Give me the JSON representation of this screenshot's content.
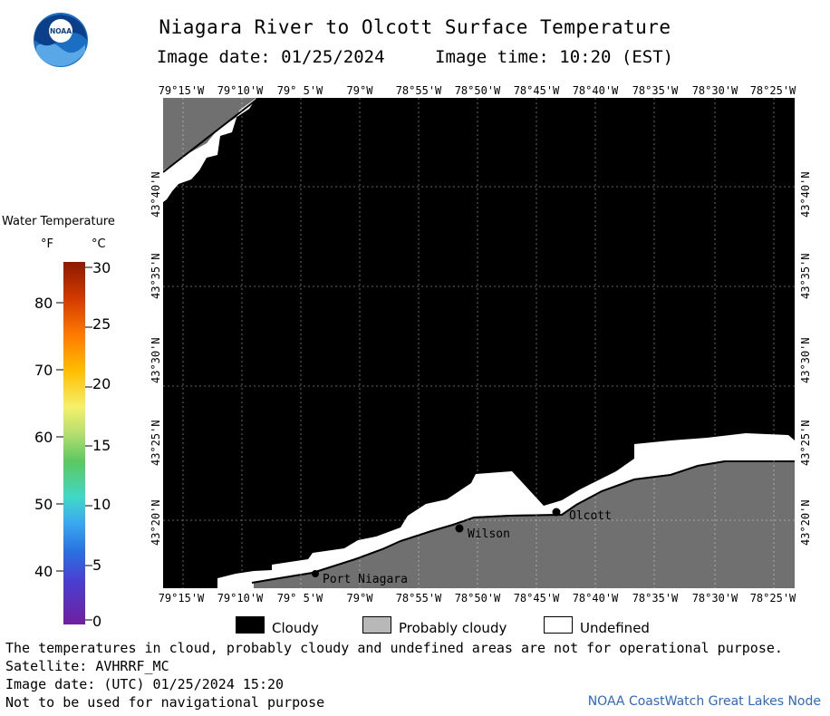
{
  "title": "Niagara River to Olcott Surface Temperature",
  "image_date": "Image date: 01/25/2024",
  "image_time": "Image time: 10:20 (EST)",
  "lon_labels": [
    "79°15'W",
    "79°10'W",
    "79° 5'W",
    "79°W",
    "78°55'W",
    "78°50'W",
    "78°45'W",
    "78°40'W",
    "78°35'W",
    "78°30'W",
    "78°25'W"
  ],
  "lat_labels": [
    "43°40'N",
    "43°35'N",
    "43°30'N",
    "43°25'N",
    "43°20'N"
  ],
  "places": [
    {
      "name": "Port Niagara"
    },
    {
      "name": "Wilson"
    },
    {
      "name": "Olcott"
    }
  ],
  "legend": {
    "title": "Water Temperature",
    "unit_f": "°F",
    "unit_c": "°C",
    "f_ticks": [
      "80",
      "70",
      "60",
      "50",
      "40"
    ],
    "c_ticks": [
      "30",
      "25",
      "20",
      "15",
      "10",
      "5",
      "0"
    ]
  },
  "key": {
    "cloudy": "Cloudy",
    "probably_cloudy": "Probably cloudy",
    "undefined": "Undefined"
  },
  "notes": {
    "disclaimer": "The temperatures in cloud, probably cloudy and undefined areas are not for operational purpose.",
    "satellite": "Satellite: AVHRRF_MC",
    "utc_date": "Image date: (UTC) 01/25/2024  15:20",
    "nav": "Not to be used for navigational purpose"
  },
  "credit": "NOAA CoastWatch Great Lakes Node",
  "logo_text": "NOAA",
  "colors": {
    "cloudy": "#000000",
    "probably_cloudy": "#b8b8b8",
    "undefined": "#ffffff",
    "land": "#707070",
    "credit": "#3068c0",
    "logo_blue": "#1a6fc2"
  }
}
